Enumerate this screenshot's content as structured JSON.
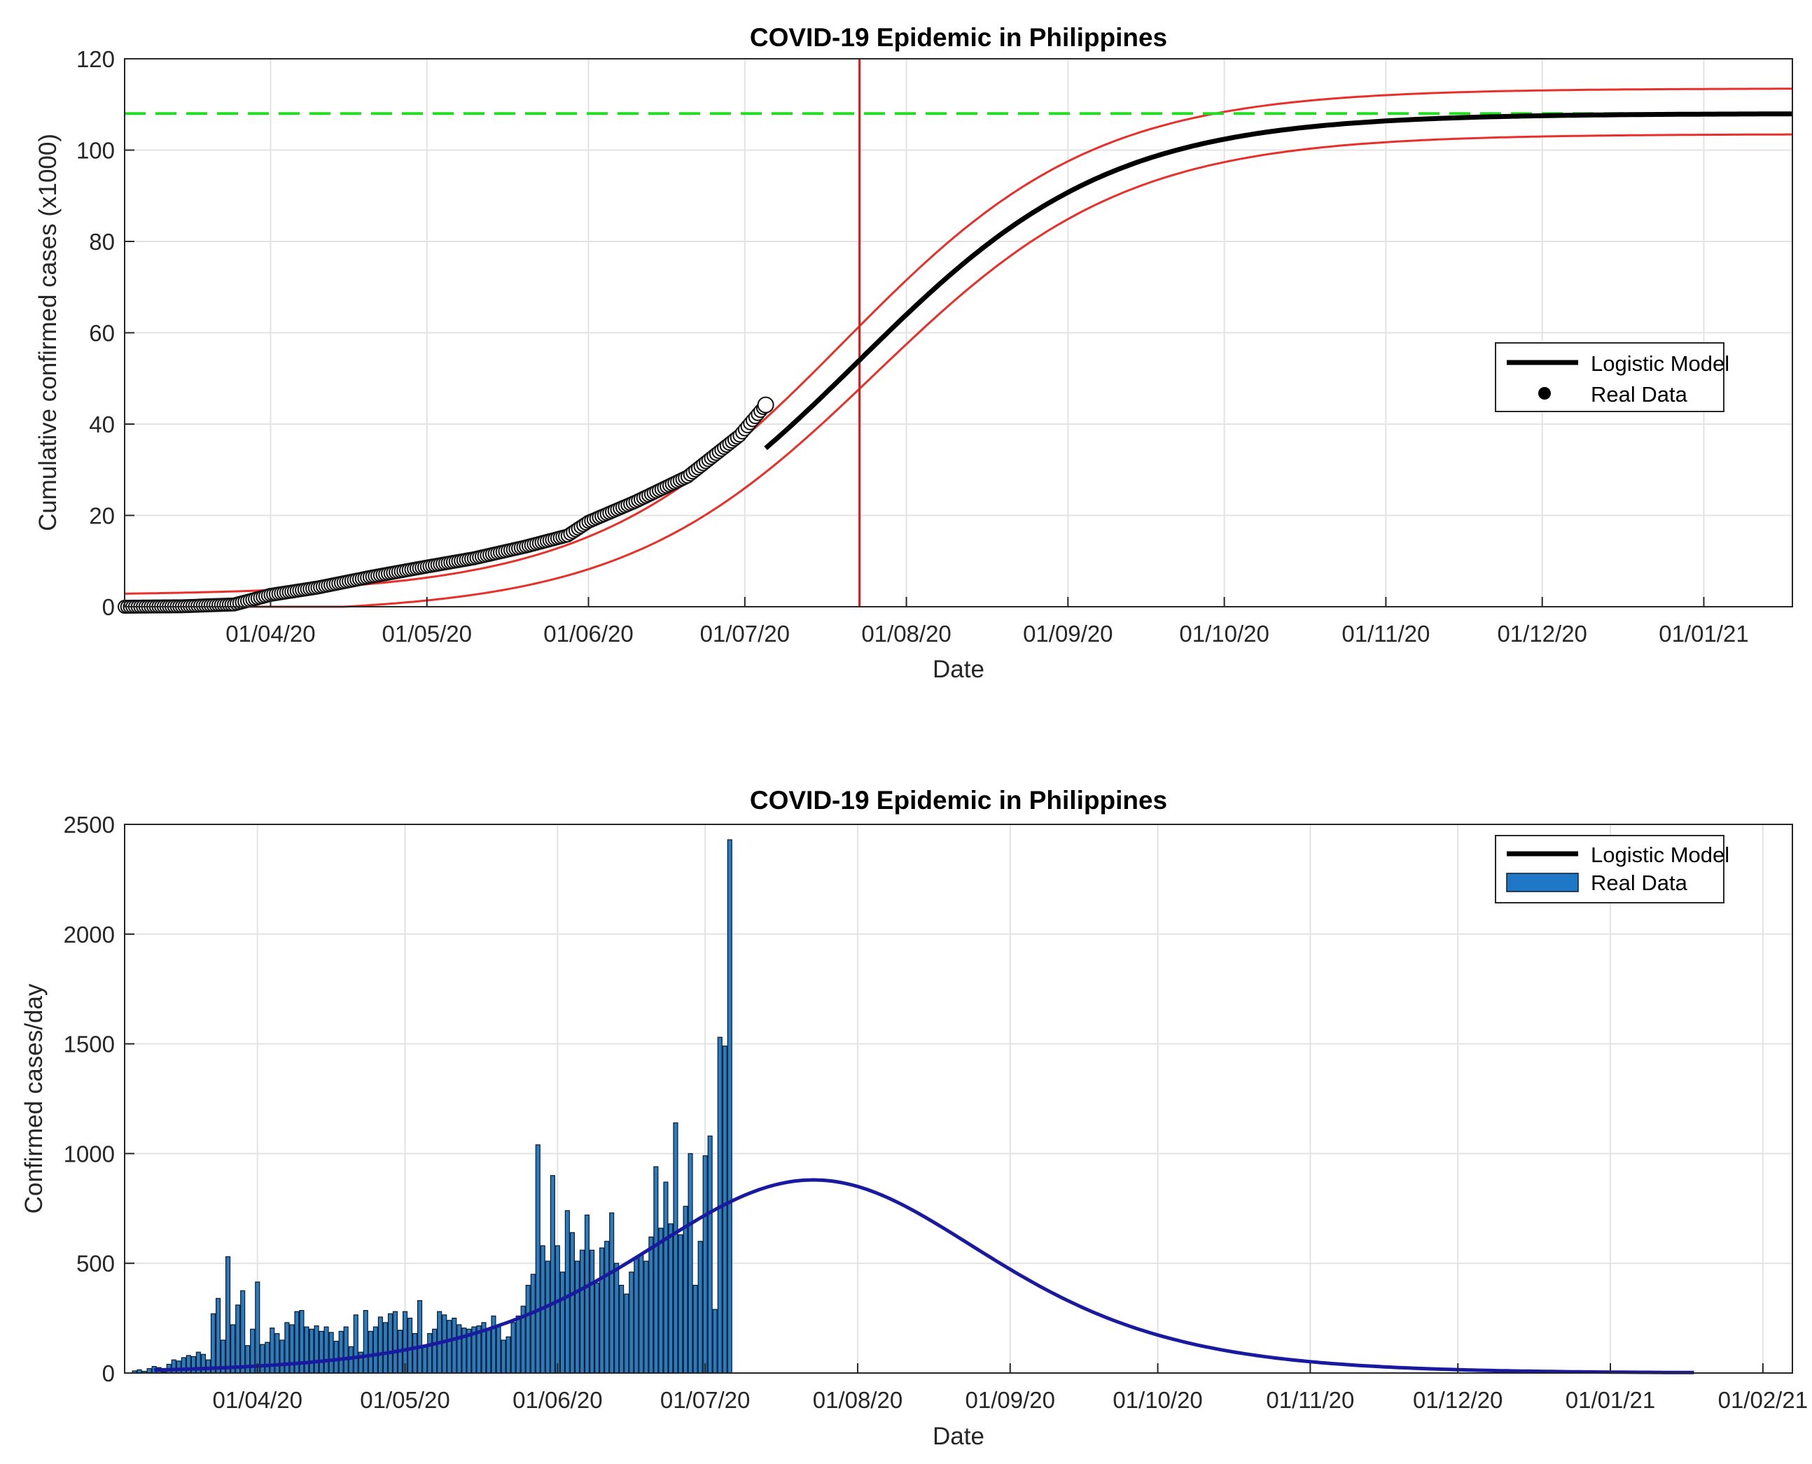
{
  "chart_data": [
    {
      "type": "line",
      "title": "COVID-19 Epidemic in Philippines",
      "xlabel": "Date",
      "ylabel": "Cumulative confirmed cases (x1000)",
      "xlim": [
        "2020-03-04",
        "2021-01-18"
      ],
      "ylim": [
        0,
        120
      ],
      "yticks": [
        0,
        20,
        40,
        60,
        80,
        100,
        120
      ],
      "xticks": [
        {
          "date": "2020-04-01",
          "label": "01/04/20"
        },
        {
          "date": "2020-05-01",
          "label": "01/05/20"
        },
        {
          "date": "2020-06-01",
          "label": "01/06/20"
        },
        {
          "date": "2020-07-01",
          "label": "01/07/20"
        },
        {
          "date": "2020-08-01",
          "label": "01/08/20"
        },
        {
          "date": "2020-09-01",
          "label": "01/09/20"
        },
        {
          "date": "2020-10-01",
          "label": "01/10/20"
        },
        {
          "date": "2020-11-01",
          "label": "01/11/20"
        },
        {
          "date": "2020-12-01",
          "label": "01/12/20"
        },
        {
          "date": "2021-01-01",
          "label": "01/01/21"
        }
      ],
      "grid": true,
      "legend_position": "middle-right",
      "legend": [
        {
          "label": "Logistic Model",
          "marker": "line",
          "color": "#000000"
        },
        {
          "label": "Real Data",
          "marker": "dot",
          "color": "#000000"
        }
      ],
      "model": {
        "K": 108,
        "peak_date": "2020-07-23",
        "r": 0.0415,
        "color": "#000000"
      },
      "band": {
        "upper_K": 111,
        "lower_K": 105,
        "color": "#e8302a"
      },
      "asymptote": {
        "y": 108,
        "color": "#22dd22",
        "style": "dashed"
      },
      "vertical_line": {
        "date": "2020-07-23",
        "color": "#cc2222"
      },
      "real_data": {
        "color": "#000000",
        "points": [
          [
            "2020-03-04",
            0.0
          ],
          [
            "2020-03-15",
            0.1
          ],
          [
            "2020-03-25",
            0.5
          ],
          [
            "2020-04-01",
            2.6
          ],
          [
            "2020-04-10",
            4.2
          ],
          [
            "2020-04-20",
            6.5
          ],
          [
            "2020-05-01",
            8.8
          ],
          [
            "2020-05-10",
            10.6
          ],
          [
            "2020-05-20",
            13.2
          ],
          [
            "2020-05-28",
            15.6
          ],
          [
            "2020-06-01",
            18.6
          ],
          [
            "2020-06-10",
            23.0
          ],
          [
            "2020-06-20",
            28.5
          ],
          [
            "2020-06-30",
            37.5
          ],
          [
            "2020-07-05",
            44.2
          ]
        ]
      }
    },
    {
      "type": "bar",
      "title": "COVID-19 Epidemic in Philippines",
      "xlabel": "Date",
      "ylabel": "Confirmed cases/day",
      "xlim": [
        "2020-03-05",
        "2021-02-07"
      ],
      "ylim": [
        0,
        2500
      ],
      "yticks": [
        0,
        500,
        1000,
        1500,
        2000,
        2500
      ],
      "xticks": [
        {
          "date": "2020-04-01",
          "label": "01/04/20"
        },
        {
          "date": "2020-05-01",
          "label": "01/05/20"
        },
        {
          "date": "2020-06-01",
          "label": "01/06/20"
        },
        {
          "date": "2020-07-01",
          "label": "01/07/20"
        },
        {
          "date": "2020-08-01",
          "label": "01/08/20"
        },
        {
          "date": "2020-09-01",
          "label": "01/09/20"
        },
        {
          "date": "2020-10-01",
          "label": "01/10/20"
        },
        {
          "date": "2020-11-01",
          "label": "01/11/20"
        },
        {
          "date": "2020-12-01",
          "label": "01/12/20"
        },
        {
          "date": "2021-01-01",
          "label": "01/01/21"
        },
        {
          "date": "2021-02-01",
          "label": "01/02/21"
        }
      ],
      "grid": true,
      "legend_position": "top-right",
      "legend": [
        {
          "label": "Logistic Model",
          "marker": "line",
          "color": "#000000"
        },
        {
          "label": "Real Data",
          "marker": "patch",
          "color": "#1f77c8"
        }
      ],
      "model": {
        "peak_value": 880,
        "peak_date": "2020-07-23",
        "r": 0.0415,
        "end_date": "2021-01-18",
        "color": "#1a1aa0"
      },
      "bars": {
        "color": "#2a7bbf",
        "edge": "#0a1a2a",
        "start_date": "2020-03-07",
        "values": [
          10,
          15,
          8,
          20,
          30,
          25,
          5,
          40,
          60,
          55,
          70,
          80,
          75,
          95,
          85,
          60,
          270,
          340,
          150,
          530,
          220,
          310,
          375,
          125,
          200,
          415,
          130,
          140,
          205,
          180,
          150,
          230,
          220,
          280,
          285,
          210,
          200,
          215,
          190,
          210,
          185,
          145,
          190,
          210,
          120,
          265,
          95,
          285,
          190,
          210,
          255,
          230,
          270,
          280,
          195,
          280,
          250,
          180,
          330,
          120,
          180,
          200,
          280,
          265,
          240,
          250,
          220,
          205,
          200,
          210,
          215,
          230,
          200,
          260,
          210,
          150,
          165,
          230,
          260,
          305,
          400,
          450,
          1040,
          580,
          510,
          900,
          580,
          460,
          740,
          640,
          510,
          560,
          720,
          560,
          410,
          570,
          600,
          730,
          500,
          400,
          360,
          460,
          520,
          540,
          510,
          620,
          940,
          660,
          870,
          680,
          1140,
          630,
          760,
          1000,
          400,
          600,
          990,
          1080,
          290,
          1530,
          1490,
          2430
        ]
      }
    }
  ]
}
